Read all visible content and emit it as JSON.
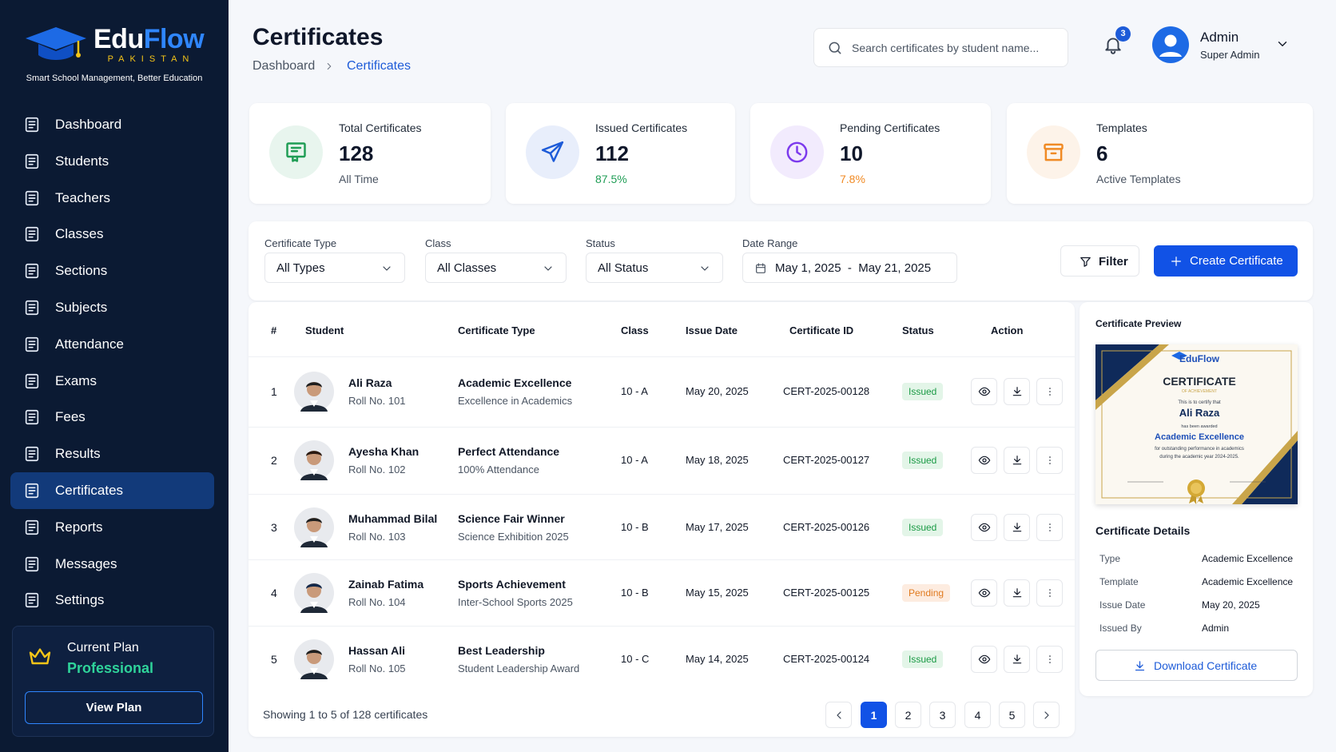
{
  "sidebar": {
    "brand": [
      "Edu",
      "Flow"
    ],
    "country": "PAKISTAN",
    "tagline": "Smart School Management, Better Education",
    "nav": [
      "Dashboard",
      "Students",
      "Teachers",
      "Classes",
      "Sections",
      "Subjects",
      "Attendance",
      "Exams",
      "Fees",
      "Results",
      "Certificates",
      "Reports",
      "Messages",
      "Settings"
    ],
    "active_nav": 10,
    "plan": {
      "label": "Current Plan",
      "name": "Professional",
      "button": "View Plan"
    }
  },
  "header": {
    "title": "Certificates",
    "breadcrumb": [
      "Dashboard",
      "Certificates"
    ],
    "search_placeholder": "Search certificates by student name...",
    "notifications": 3,
    "user": {
      "name": "Admin",
      "role": "Super Admin"
    }
  },
  "stats": [
    {
      "label": "Total Certificates",
      "value": 128,
      "note": "All Time",
      "color": "#1f9d55",
      "note_color": "#4b5563"
    },
    {
      "label": "Issued Certificates",
      "value": 112,
      "note": "87.5%",
      "color": "#1d5bd8",
      "note_color": "#1f9d55"
    },
    {
      "label": "Pending Certificates",
      "value": 10,
      "note": "7.8%",
      "color": "#7c3aed",
      "note_color": "#f08a24"
    },
    {
      "label": "Templates",
      "value": 6,
      "note": "Active Templates",
      "color": "#f08a24",
      "note_color": "#4b5563"
    }
  ],
  "filters": [
    {
      "label": "Certificate Type",
      "value": "All Types"
    },
    {
      "label": "Class",
      "value": "All Classes"
    },
    {
      "label": "Status",
      "value": "All Status"
    },
    {
      "label": "Date Range",
      "value": "May 1, 2025  -  May 21, 2025"
    }
  ],
  "filter_button": "Filter",
  "create_button": "Create Certificate",
  "table": {
    "columns": [
      "#",
      "Student",
      "Certificate Type",
      "Class",
      "Issue Date",
      "Certificate ID",
      "Status",
      "Action"
    ],
    "rows": [
      {
        "no": 1,
        "name": "Ali Raza",
        "roll": "Roll No. 101",
        "type": "Academic Excellence",
        "type_sub": "Excellence in Academics",
        "class": "10 - A",
        "date": "May 20, 2025",
        "id": "CERT-2025-00128",
        "status": "Issued"
      },
      {
        "no": 2,
        "name": "Ayesha Khan",
        "roll": "Roll No. 102",
        "type": "Perfect Attendance",
        "type_sub": "100% Attendance",
        "class": "10 - A",
        "date": "May 18, 2025",
        "id": "CERT-2025-00127",
        "status": "Issued"
      },
      {
        "no": 3,
        "name": "Muhammad Bilal",
        "roll": "Roll No. 103",
        "type": "Science Fair Winner",
        "type_sub": "Science Exhibition 2025",
        "class": "10 - B",
        "date": "May 17, 2025",
        "id": "CERT-2025-00126",
        "status": "Issued"
      },
      {
        "no": 4,
        "name": "Zainab Fatima",
        "roll": "Roll No. 104",
        "type": "Sports Achievement",
        "type_sub": "Inter-School Sports 2025",
        "class": "10 - B",
        "date": "May 15, 2025",
        "id": "CERT-2025-00125",
        "status": "Pending"
      },
      {
        "no": 5,
        "name": "Hassan Ali",
        "roll": "Roll No. 105",
        "type": "Best Leadership",
        "type_sub": "Student Leadership Award",
        "class": "10 - C",
        "date": "May 14, 2025",
        "id": "CERT-2025-00124",
        "status": "Issued"
      }
    ],
    "footer": "Showing 1 to 5 of 128 certificates",
    "pages": [
      1,
      2,
      3,
      4,
      5
    ],
    "current_page": 1
  },
  "preview": {
    "title": "Certificate Preview",
    "certificate": {
      "brand": "EduFlow",
      "heading": "CERTIFICATE",
      "subheading": "OF ACHIEVEMENT",
      "intro": "This is to certify that",
      "name": "Ali Raza",
      "awarded": "has been awarded",
      "award": "Academic Excellence",
      "description": [
        "for outstanding performance in academics",
        "during the academic year 2024-2025."
      ]
    },
    "details_title": "Certificate Details",
    "details": [
      {
        "label": "Type",
        "value": "Academic Excellence"
      },
      {
        "label": "Template",
        "value": "Academic Excellence"
      },
      {
        "label": "Issue Date",
        "value": "May 20, 2025"
      },
      {
        "label": "Issued By",
        "value": "Admin"
      }
    ],
    "button": "Download Certificate"
  }
}
